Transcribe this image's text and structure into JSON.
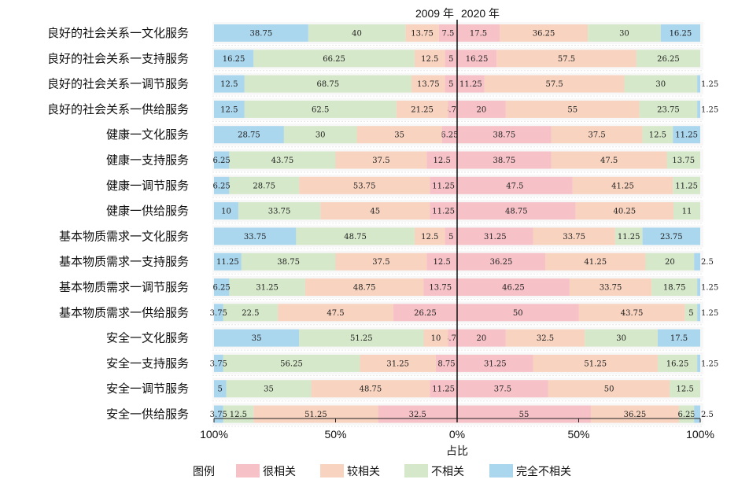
{
  "chart_data": {
    "type": "bar",
    "orientation": "horizontal",
    "layout": "diverging-stacked",
    "periods": [
      "2009 年",
      "2020 年"
    ],
    "xlabel": "占比",
    "x_ticks": [
      "100%",
      "50%",
      "0%",
      "50%",
      "100%"
    ],
    "xlim_left": [
      100,
      0
    ],
    "xlim_right": [
      0,
      100
    ],
    "grid": false,
    "legend_title": "图例",
    "legend_position": "bottom",
    "categories": [
      "良好的社会关系一文化服务",
      "良好的社会关系一支持服务",
      "良好的社会关系一调节服务",
      "良好的社会关系一供给服务",
      "健康一文化服务",
      "健康一支持服务",
      "健康一调节服务",
      "健康一供给服务",
      "基本物质需求一文化服务",
      "基本物质需求一支持服务",
      "基本物质需求一调节服务",
      "基本物质需求一供给服务",
      "安全一文化服务",
      "安全一支持服务",
      "安全一调节服务",
      "安全一供给服务"
    ],
    "series": [
      {
        "name": "很相关",
        "color": "#f6c1c7",
        "values_2009": [
          7.5,
          5,
          5,
          3.75,
          6.25,
          12.5,
          11.25,
          11.25,
          5,
          12.5,
          13.75,
          26.25,
          3.75,
          8.75,
          11.25,
          32.5
        ],
        "values_2020": [
          17.5,
          16.25,
          11.25,
          20,
          38.75,
          38.75,
          47.5,
          48.75,
          31.25,
          36.25,
          46.25,
          50,
          20,
          31.25,
          37.5,
          55
        ]
      },
      {
        "name": "较相关",
        "color": "#f8d3bf",
        "values_2009": [
          13.75,
          12.5,
          13.75,
          21.25,
          35,
          37.5,
          53.75,
          45,
          12.5,
          37.5,
          48.75,
          47.5,
          10,
          31.25,
          48.75,
          51.25
        ],
        "values_2020": [
          36.25,
          57.5,
          57.5,
          55,
          37.5,
          47.5,
          41.25,
          40.25,
          33.75,
          41.25,
          33.75,
          43.75,
          32.5,
          51.25,
          50,
          36.25
        ]
      },
      {
        "name": "不相关",
        "color": "#d5e8c9",
        "values_2009": [
          40,
          66.25,
          68.75,
          62.5,
          30,
          43.75,
          28.75,
          33.75,
          48.75,
          38.75,
          31.25,
          22.5,
          51.25,
          56.25,
          35,
          12.5
        ],
        "values_2020": [
          30,
          26.25,
          30,
          23.75,
          12.5,
          13.75,
          11.25,
          11,
          11.25,
          20,
          18.75,
          5,
          30,
          16.25,
          12.5,
          6.25
        ]
      },
      {
        "name": "完全不相关",
        "color": "#aad6ee",
        "values_2009": [
          38.75,
          16.25,
          12.5,
          12.5,
          28.75,
          6.25,
          6.25,
          10,
          33.75,
          11.25,
          6.25,
          3.75,
          35,
          3.75,
          5,
          3.75
        ],
        "values_2020": [
          16.25,
          0,
          1.25,
          1.25,
          11.25,
          0,
          0,
          0,
          23.75,
          2.5,
          1.25,
          1.25,
          17.5,
          1.25,
          0,
          2.5
        ]
      }
    ]
  }
}
